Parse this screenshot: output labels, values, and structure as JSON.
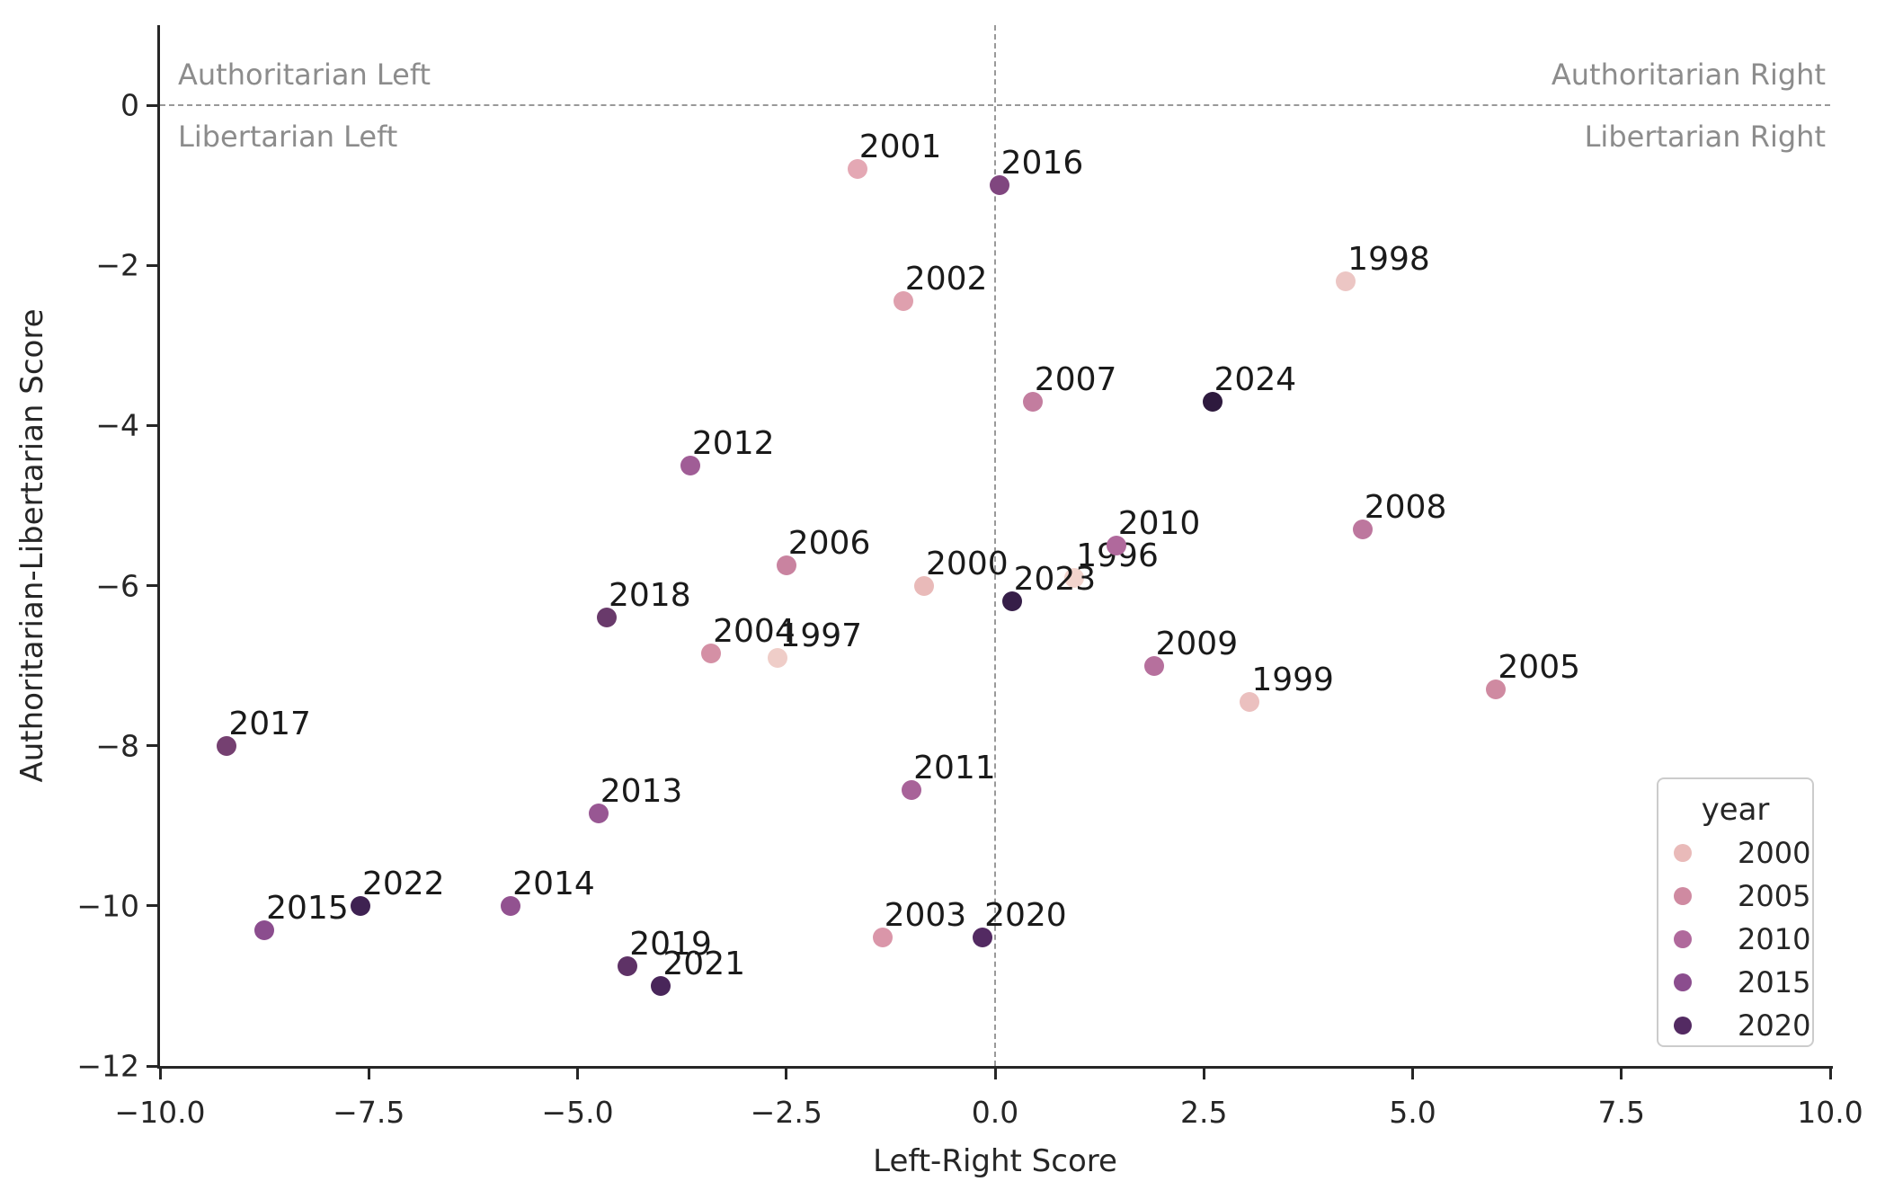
{
  "figure": {
    "background": "#ffffff"
  },
  "chart_data": {
    "type": "scatter",
    "title": "",
    "xlabel": "Left-Right Score",
    "ylabel": "Authoritarian-Libertarian Score",
    "xlim": [
      -10,
      10
    ],
    "ylim": [
      -12,
      1
    ],
    "grid": false,
    "reference_lines": {
      "horizontal_at_y": 0,
      "vertical_at_x": 0,
      "style": "dashed",
      "color": "#999999"
    },
    "quadrant_labels": {
      "top_left": "Authoritarian Left",
      "bottom_left": "Libertarian Left",
      "top_right": "Authoritarian Right",
      "bottom_right": "Libertarian Right"
    },
    "x_ticks": [
      {
        "v": -10,
        "label": "−10.0"
      },
      {
        "v": -7.5,
        "label": "−7.5"
      },
      {
        "v": -5,
        "label": "−5.0"
      },
      {
        "v": -2.5,
        "label": "−2.5"
      },
      {
        "v": 0,
        "label": "0.0"
      },
      {
        "v": 2.5,
        "label": "2.5"
      },
      {
        "v": 5,
        "label": "5.0"
      },
      {
        "v": 7.5,
        "label": "7.5"
      },
      {
        "v": 10,
        "label": "10.0"
      }
    ],
    "y_ticks": [
      {
        "v": 0,
        "label": "0"
      },
      {
        "v": -2,
        "label": "−2"
      },
      {
        "v": -4,
        "label": "−4"
      },
      {
        "v": -6,
        "label": "−6"
      },
      {
        "v": -8,
        "label": "−8"
      },
      {
        "v": -10,
        "label": "−10"
      },
      {
        "v": -12,
        "label": "−12"
      }
    ],
    "points": [
      {
        "year": "1996",
        "x": 0.95,
        "y": -5.9,
        "color": "#f2d4cd"
      },
      {
        "year": "1997",
        "x": -2.6,
        "y": -6.9,
        "color": "#efcdc8"
      },
      {
        "year": "1998",
        "x": 4.2,
        "y": -2.2,
        "color": "#ecc6c4"
      },
      {
        "year": "1999",
        "x": 3.05,
        "y": -7.45,
        "color": "#ebc0bf"
      },
      {
        "year": "2000",
        "x": -0.85,
        "y": -6.0,
        "color": "#e9bab9"
      },
      {
        "year": "2001",
        "x": -1.65,
        "y": -0.8,
        "color": "#e4a8b4"
      },
      {
        "year": "2002",
        "x": -1.1,
        "y": -2.45,
        "color": "#dfa0ae"
      },
      {
        "year": "2003",
        "x": -1.35,
        "y": -10.4,
        "color": "#da96a9"
      },
      {
        "year": "2004",
        "x": -3.4,
        "y": -6.85,
        "color": "#d490a5"
      },
      {
        "year": "2005",
        "x": 6.0,
        "y": -7.3,
        "color": "#cf8aa1"
      },
      {
        "year": "2006",
        "x": -2.5,
        "y": -5.75,
        "color": "#c983a0"
      },
      {
        "year": "2007",
        "x": 0.45,
        "y": -3.7,
        "color": "#c37d9f"
      },
      {
        "year": "2008",
        "x": 4.4,
        "y": -5.3,
        "color": "#bd779e"
      },
      {
        "year": "2009",
        "x": 1.9,
        "y": -7.0,
        "color": "#b6709d"
      },
      {
        "year": "2010",
        "x": 1.45,
        "y": -5.5,
        "color": "#b0699c"
      },
      {
        "year": "2011",
        "x": -1.0,
        "y": -8.55,
        "color": "#a86399"
      },
      {
        "year": "2012",
        "x": -3.65,
        "y": -4.5,
        "color": "#a05d96"
      },
      {
        "year": "2013",
        "x": -4.75,
        "y": -8.85,
        "color": "#985793"
      },
      {
        "year": "2014",
        "x": -5.8,
        "y": -10.0,
        "color": "#925290"
      },
      {
        "year": "2015",
        "x": -8.75,
        "y": -10.3,
        "color": "#8b4d8e"
      },
      {
        "year": "2016",
        "x": 0.05,
        "y": -1.0,
        "color": "#80467f"
      },
      {
        "year": "2017",
        "x": -9.2,
        "y": -8.0,
        "color": "#754071"
      },
      {
        "year": "2018",
        "x": -4.65,
        "y": -6.4,
        "color": "#693a6b"
      },
      {
        "year": "2019",
        "x": -4.4,
        "y": -10.75,
        "color": "#5e3266"
      },
      {
        "year": "2020",
        "x": -0.15,
        "y": -10.4,
        "color": "#532a62"
      },
      {
        "year": "2021",
        "x": -4.0,
        "y": -11.0,
        "color": "#49265a"
      },
      {
        "year": "2022",
        "x": -7.6,
        "y": -10.0,
        "color": "#3f2252"
      },
      {
        "year": "2023",
        "x": 0.2,
        "y": -6.2,
        "color": "#361e48"
      },
      {
        "year": "2024",
        "x": 2.6,
        "y": -3.7,
        "color": "#2e1a3e"
      }
    ],
    "legend": {
      "title": "year",
      "position": "lower right",
      "entries": [
        {
          "label": "2000",
          "color": "#e9bab9"
        },
        {
          "label": "2005",
          "color": "#cf8aa1"
        },
        {
          "label": "2010",
          "color": "#b0699c"
        },
        {
          "label": "2015",
          "color": "#8b4d8e"
        },
        {
          "label": "2020",
          "color": "#532a62"
        }
      ]
    }
  }
}
